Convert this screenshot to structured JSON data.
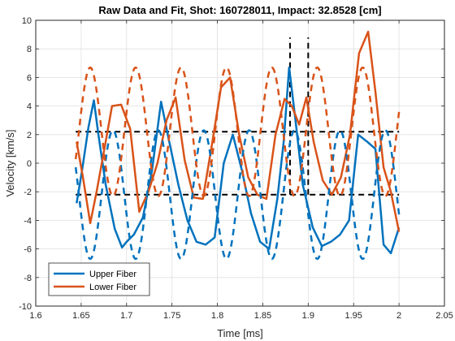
{
  "chart_data": {
    "type": "line",
    "title": "Raw Data and Fit, Shot: 160728011, Impact: 32.8528 [cm]",
    "xlabel": "Time [ms]",
    "ylabel": "Velocity [km/s]",
    "xlim": [
      1.6,
      2.05
    ],
    "ylim": [
      -10,
      10
    ],
    "xticks": [
      1.6,
      1.65,
      1.7,
      1.75,
      1.8,
      1.85,
      1.9,
      1.95,
      2.0,
      2.05
    ],
    "xtick_labels": [
      "1.6",
      "1.65",
      "1.7",
      "1.75",
      "1.8",
      "1.85",
      "1.9",
      "1.95",
      "2",
      "2.05"
    ],
    "yticks": [
      -10,
      -8,
      -6,
      -4,
      -2,
      0,
      2,
      4,
      6,
      8,
      10
    ],
    "ytick_labels": [
      "-10",
      "-8",
      "-6",
      "-4",
      "-2",
      "0",
      "2",
      "4",
      "6",
      "8",
      "10"
    ],
    "grid": true,
    "legend_position": "bottom-left",
    "colors": {
      "upper": "#0072BD",
      "lower": "#D95319",
      "reference": "#000000"
    },
    "series": [
      {
        "name": "Upper Fiber",
        "style": "solid",
        "color": "#0072BD",
        "x": [
          1.645,
          1.651,
          1.658,
          1.664,
          1.669,
          1.677,
          1.687,
          1.695,
          1.7,
          1.708,
          1.718,
          1.728,
          1.738,
          1.747,
          1.757,
          1.767,
          1.777,
          1.787,
          1.797,
          1.807,
          1.817,
          1.827,
          1.837,
          1.847,
          1.857,
          1.866,
          1.873,
          1.879,
          1.886,
          1.894,
          1.905,
          1.915,
          1.925,
          1.935,
          1.945,
          1.955,
          1.965,
          1.974,
          1.983,
          1.991,
          2.0
        ],
        "y": [
          -2.8,
          -0.5,
          2.5,
          4.4,
          2.0,
          -1.5,
          -4.6,
          -5.9,
          -5.5,
          -5.0,
          -3.8,
          -0.5,
          4.3,
          1.5,
          -1.5,
          -4.0,
          -5.5,
          -5.7,
          -5.2,
          0.0,
          2.0,
          -0.5,
          -3.5,
          -5.5,
          -6.0,
          -2.5,
          1.5,
          6.7,
          3.0,
          -1.5,
          -4.5,
          -5.8,
          -5.5,
          -5.0,
          -4.0,
          2.0,
          1.5,
          1.0,
          -5.7,
          -6.3,
          -4.5
        ]
      },
      {
        "name": "Lower Fiber",
        "style": "solid",
        "color": "#D95319",
        "x": [
          1.645,
          1.652,
          1.66,
          1.667,
          1.675,
          1.684,
          1.694,
          1.704,
          1.714,
          1.724,
          1.734,
          1.744,
          1.754,
          1.764,
          1.774,
          1.784,
          1.794,
          1.804,
          1.814,
          1.824,
          1.834,
          1.844,
          1.854,
          1.864,
          1.874,
          1.882,
          1.89,
          1.898,
          1.906,
          1.916,
          1.926,
          1.936,
          1.946,
          1.956,
          1.966,
          1.974,
          1.983,
          1.991,
          2.0
        ],
        "y": [
          1.5,
          -1.0,
          -4.2,
          -2.0,
          0.8,
          4.0,
          4.1,
          2.4,
          -3.4,
          -2.0,
          0.0,
          3.0,
          4.6,
          0.2,
          -2.4,
          -2.5,
          1.3,
          5.3,
          6.0,
          2.0,
          -1.0,
          -2.2,
          -2.5,
          2.0,
          4.5,
          4.0,
          2.7,
          4.6,
          1.5,
          -1.2,
          -2.2,
          -1.0,
          2.0,
          7.7,
          9.2,
          5.0,
          -0.3,
          -2.0,
          -4.8
        ]
      },
      {
        "name": "",
        "style": "dashed",
        "color": "#0072BD",
        "fit": {
          "amplitude": 4.5,
          "offset": -2.2,
          "period": 0.05,
          "phase": 1.6725
        }
      },
      {
        "name": "",
        "style": "dashed",
        "color": "#D95319",
        "fit": {
          "amplitude": 4.5,
          "offset": 2.2,
          "period": 0.05,
          "phase": 1.6975
        }
      }
    ],
    "reference_lines": {
      "horizontal": [
        {
          "y": 2.2,
          "x_range": [
            1.644,
            2.0
          ]
        },
        {
          "y": -2.2,
          "x_range": [
            1.644,
            2.0
          ]
        }
      ],
      "vertical": [
        {
          "x": 1.88,
          "y_range": [
            -2.2,
            8.8
          ]
        },
        {
          "x": 1.9,
          "y_range": [
            -2.2,
            8.8
          ]
        }
      ]
    }
  }
}
